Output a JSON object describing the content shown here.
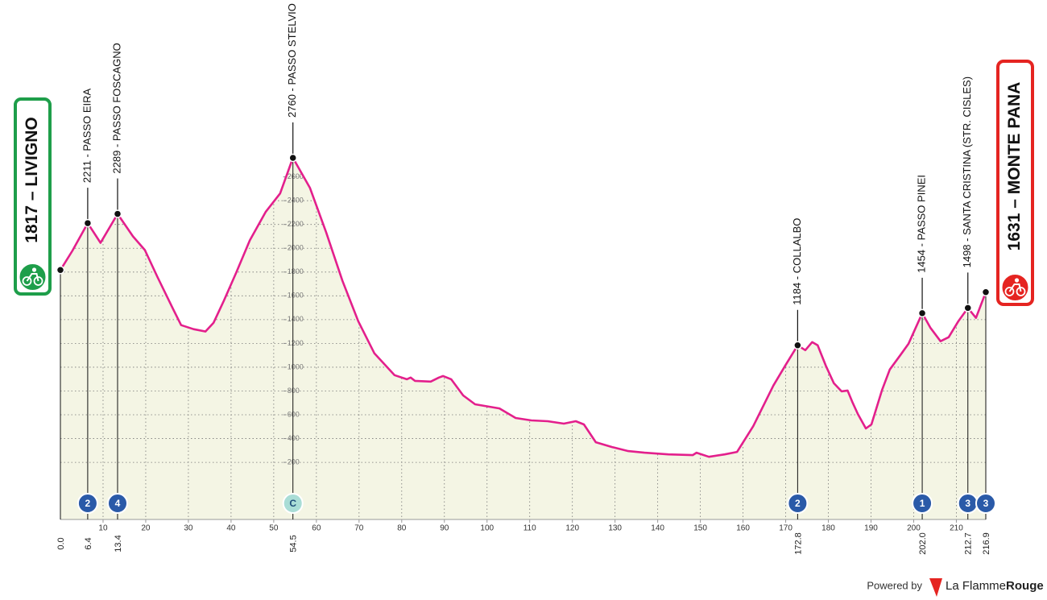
{
  "chart_data": {
    "type": "profile",
    "x": [
      0,
      2.8,
      6.4,
      9.4,
      13.4,
      17.0,
      19.8,
      22.7,
      26.4,
      28.3,
      31.2,
      34.0,
      35.9,
      38.3,
      41.2,
      44.4,
      48.1,
      51.5,
      54.5,
      58.5,
      62.3,
      66.1,
      69.8,
      73.6,
      78.3,
      81.2,
      82.1,
      83.1,
      86.8,
      88.7,
      89.7,
      91.6,
      94.4,
      97.2,
      102.9,
      106.7,
      110.4,
      114.2,
      118.0,
      120.8,
      122.7,
      125.5,
      129.3,
      133.1,
      136.9,
      142.5,
      148.2,
      149.1,
      152.0,
      155.7,
      158.6,
      162.4,
      167.1,
      169.9,
      172.8,
      174.6,
      176.2,
      177.5,
      179.4,
      181.3,
      183.1,
      184.5,
      185.6,
      186.9,
      188.8,
      190.1,
      192.6,
      194.4,
      196.9,
      198.8,
      202.0,
      203.9,
      206.3,
      208.2,
      210.5,
      212.7,
      214.6,
      216.9
    ],
    "values": [
      1817,
      1978,
      2211,
      2046,
      2289,
      2100,
      1985,
      1761,
      1489,
      1354,
      1320,
      1300,
      1374,
      1558,
      1795,
      2067,
      2305,
      2461,
      2760,
      2507,
      2133,
      1726,
      1387,
      1116,
      933,
      899,
      913,
      885,
      879,
      913,
      926,
      899,
      763,
      688,
      654,
      573,
      553,
      546,
      526,
      546,
      519,
      369,
      329,
      295,
      281,
      267,
      261,
      281,
      247,
      267,
      288,
      505,
      845,
      1014,
      1184,
      1143,
      1211,
      1184,
      1014,
      865,
      797,
      804,
      709,
      607,
      485,
      519,
      811,
      981,
      1103,
      1198,
      1454,
      1333,
      1218,
      1252,
      1388,
      1498,
      1415,
      1631
    ],
    "color": "#e31f8c",
    "fill": "#f4f5e4",
    "xlim": [
      0,
      216.9
    ],
    "ylim": [
      -280,
      2760
    ],
    "xticks": [
      10,
      20,
      30,
      40,
      50,
      60,
      70,
      80,
      90,
      100,
      110,
      120,
      130,
      140,
      150,
      160,
      170,
      180,
      190,
      200,
      210
    ],
    "yticks": [
      200,
      400,
      600,
      800,
      1000,
      1200,
      1400,
      1600,
      1800,
      2000,
      2200,
      2400,
      2600
    ],
    "grid": true,
    "start": {
      "km": {
        "value": 0,
        "label": "0.0"
      },
      "elevation": 1817,
      "label": "1817 – LIVIGNO",
      "color": "#1e9e4a"
    },
    "finish": {
      "km": {
        "value": 216.9,
        "label": "216.9"
      },
      "elevation": 1631,
      "label": "1631 – MONTE PANA",
      "category": "3",
      "badge_color": "#2a5aa8",
      "color": "#e52421"
    },
    "climbs": [
      {
        "km": {
          "value": 6.4,
          "label": "6.4"
        },
        "elevation": 2211,
        "label": "2211 - PASSO EIRA",
        "category": "2",
        "badge_color": "#2a5aa8"
      },
      {
        "km": {
          "value": 13.4,
          "label": "13.4"
        },
        "elevation": 2289,
        "label": "2289 - PASSO FOSCAGNO",
        "category": "4",
        "badge_color": "#2a5aa8"
      },
      {
        "km": {
          "value": 54.5,
          "label": "54.5"
        },
        "elevation": 2760,
        "label": "2760 - PASSO STELVIO",
        "category": "C",
        "badge_color": "#a9ddd6"
      },
      {
        "km": {
          "value": 172.8,
          "label": "172.8"
        },
        "elevation": 1184,
        "label": "1184 - COLLALBO",
        "category": "2",
        "badge_color": "#2a5aa8"
      },
      {
        "km": {
          "value": 202.0,
          "label": "202.0"
        },
        "elevation": 1454,
        "label": "1454 - PASSO PINEI",
        "category": "1",
        "badge_color": "#2a5aa8"
      },
      {
        "km": {
          "value": 212.7,
          "label": "212.7"
        },
        "elevation": 1498,
        "label": "1498 - SANTA CRISTINA (STR. CISLES)",
        "category": "3",
        "badge_color": "#2a5aa8"
      }
    ]
  },
  "footer": {
    "powered_by": "Powered by",
    "brand": "La Flamme",
    "brand_bold": "Rouge"
  }
}
